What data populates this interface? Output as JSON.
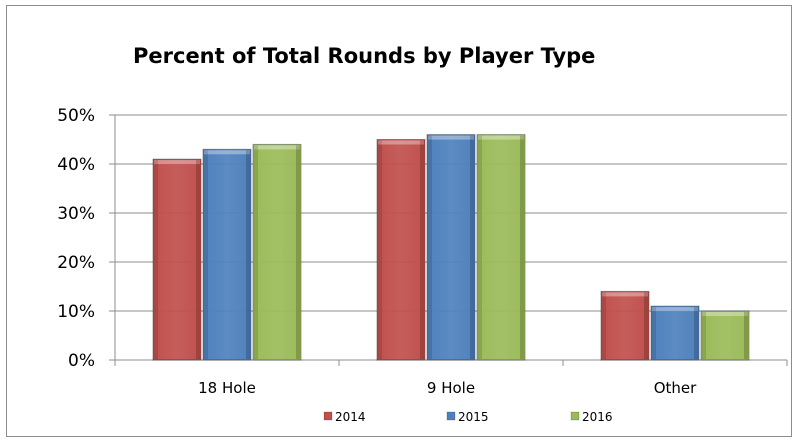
{
  "chart_data": {
    "type": "bar",
    "title": "Percent of Total Rounds by Player Type",
    "categories": [
      "18 Hole",
      "9 Hole",
      "Other"
    ],
    "series": [
      {
        "name": "2014",
        "values": [
          41,
          45,
          14
        ],
        "color": "#c0504d"
      },
      {
        "name": "2015",
        "values": [
          43,
          46,
          11
        ],
        "color": "#4f81bd"
      },
      {
        "name": "2016",
        "values": [
          44,
          46,
          10
        ],
        "color": "#9bbb59"
      }
    ],
    "ylim": [
      0,
      50
    ],
    "yticks": [
      "0%",
      "10%",
      "20%",
      "30%",
      "40%",
      "50%"
    ],
    "grid": true,
    "bar_style": "3d-bevel",
    "legend_position": "bottom"
  }
}
